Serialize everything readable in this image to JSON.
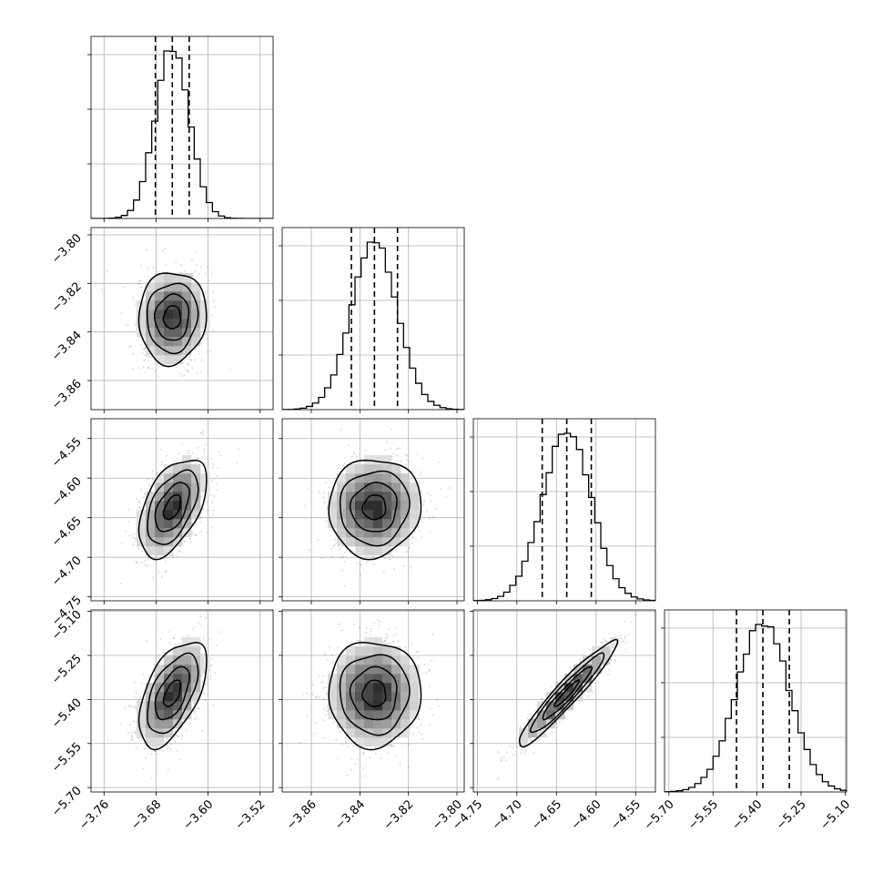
{
  "chart_data": {
    "type": "corner",
    "grid": true,
    "parameters": [
      {
        "id": "p0",
        "range": [
          -3.78,
          -3.5
        ],
        "ticks": [
          -3.76,
          -3.68,
          -3.6,
          -3.52
        ],
        "tick_labels": [
          "−3.76",
          "−3.68",
          "−3.60",
          "−3.52"
        ],
        "mean": -3.655,
        "sd": 0.026,
        "quantiles": [
          -3.681,
          -3.655,
          -3.629
        ]
      },
      {
        "id": "p1",
        "range": [
          -3.872,
          -3.797
        ],
        "ticks": [
          -3.86,
          -3.84,
          -3.82,
          -3.8
        ],
        "tick_labels": [
          "−3.86",
          "−3.84",
          "−3.82",
          "−3.80"
        ],
        "mean": -3.834,
        "sd": 0.0095,
        "quantiles": [
          -3.8435,
          -3.834,
          -3.8245
        ]
      },
      {
        "id": "p2",
        "range": [
          -4.755,
          -4.525
        ],
        "ticks": [
          -4.75,
          -4.7,
          -4.65,
          -4.6,
          -4.55
        ],
        "tick_labels": [
          "−4.75",
          "−4.70",
          "−4.65",
          "−4.60",
          "−4.55"
        ],
        "mean": -4.637,
        "sd": 0.031,
        "quantiles": [
          -4.668,
          -4.637,
          -4.606
        ]
      },
      {
        "id": "p3",
        "range": [
          -5.715,
          -5.095
        ],
        "ticks": [
          -5.7,
          -5.55,
          -5.4,
          -5.25,
          -5.1
        ],
        "tick_labels": [
          "−5.70",
          "−5.55",
          "−5.40",
          "−5.25",
          "−5.10"
        ],
        "mean": -5.38,
        "sd": 0.09,
        "quantiles": [
          -5.47,
          -5.38,
          -5.29
        ]
      }
    ],
    "correlations": [
      {
        "x": "p0",
        "y": "p1",
        "rho": 0.05
      },
      {
        "x": "p0",
        "y": "p2",
        "rho": 0.5
      },
      {
        "x": "p1",
        "y": "p2",
        "rho": 0.05
      },
      {
        "x": "p0",
        "y": "p3",
        "rho": 0.55
      },
      {
        "x": "p1",
        "y": "p3",
        "rho": 0.0
      },
      {
        "x": "p2",
        "y": "p3",
        "rho": 0.95
      }
    ],
    "contour_levels_sigma": [
      0.5,
      1.0,
      1.5,
      2.0
    ],
    "colors": {
      "line": "#000000",
      "scatter": "#000000",
      "grid": "#b0b0b0"
    }
  }
}
